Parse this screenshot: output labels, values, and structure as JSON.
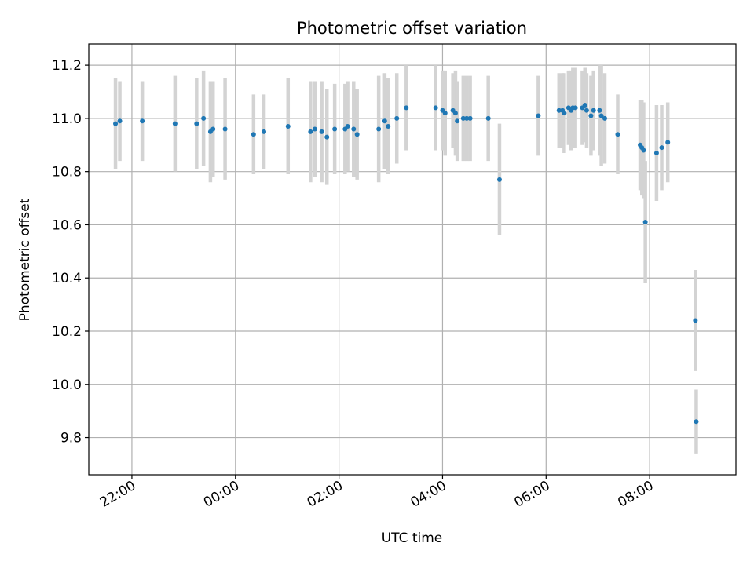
{
  "chart_data": {
    "type": "scatter",
    "title": "Photometric offset variation",
    "xlabel": "UTC time",
    "ylabel": "Photometric offset",
    "grid": true,
    "legend": "none",
    "xlim": [
      "21:10",
      "09:40"
    ],
    "ylim": [
      9.66,
      11.28
    ],
    "x_tick_labels": [
      "22:00",
      "00:00",
      "02:00",
      "04:00",
      "06:00",
      "08:00"
    ],
    "y_tick_labels": [
      "9.8",
      "10.0",
      "10.2",
      "10.4",
      "10.6",
      "10.8",
      "11.0",
      "11.2"
    ],
    "colors": {
      "points": "#1f77b4",
      "error_bars": "#d3d3d3",
      "grid": "#b0b0b0"
    },
    "series": [
      {
        "x": [
          "21:41",
          "21:46",
          "22:12",
          "22:50",
          "23:15",
          "23:23",
          "23:31",
          "23:34",
          "23:48",
          "00:21",
          "00:33",
          "01:01",
          "01:27",
          "01:32",
          "01:40",
          "01:46",
          "01:55",
          "02:07",
          "02:10",
          "02:17",
          "02:21",
          "02:46",
          "02:53",
          "02:57",
          "03:07",
          "03:18",
          "03:52",
          "04:00",
          "04:03",
          "04:12",
          "04:15",
          "04:17",
          "04:24",
          "04:28",
          "04:32",
          "04:53",
          "05:06",
          "05:51",
          "06:15",
          "06:19",
          "06:21",
          "06:26",
          "06:29",
          "06:31",
          "06:34",
          "06:42",
          "06:45",
          "06:47",
          "06:52",
          "06:55",
          "07:02",
          "07:04",
          "07:08",
          "07:23",
          "07:49",
          "07:51",
          "07:53",
          "07:55",
          "08:08",
          "08:14",
          "08:21",
          "08:53",
          "08:54"
        ],
        "y": [
          10.98,
          10.99,
          10.99,
          10.98,
          10.98,
          11.0,
          10.95,
          10.96,
          10.96,
          10.94,
          10.95,
          10.97,
          10.95,
          10.96,
          10.95,
          10.93,
          10.96,
          10.96,
          10.97,
          10.96,
          10.94,
          10.96,
          10.99,
          10.97,
          11.0,
          11.04,
          11.04,
          11.03,
          11.02,
          11.03,
          11.02,
          10.99,
          11.0,
          11.0,
          11.0,
          11.0,
          10.77,
          11.01,
          11.03,
          11.03,
          11.02,
          11.04,
          11.03,
          11.04,
          11.04,
          11.04,
          11.05,
          11.03,
          11.01,
          11.03,
          11.03,
          11.01,
          11.0,
          10.94,
          10.9,
          10.89,
          10.88,
          10.61,
          10.87,
          10.89,
          10.91,
          10.24,
          9.86
        ],
        "y_err": [
          0.17,
          0.15,
          0.15,
          0.18,
          0.17,
          0.18,
          0.19,
          0.18,
          0.19,
          0.15,
          0.14,
          0.18,
          0.19,
          0.18,
          0.19,
          0.18,
          0.17,
          0.17,
          0.17,
          0.18,
          0.17,
          0.2,
          0.18,
          0.18,
          0.17,
          0.16,
          0.16,
          0.15,
          0.16,
          0.14,
          0.16,
          0.15,
          0.16,
          0.16,
          0.16,
          0.16,
          0.21,
          0.15,
          0.14,
          0.14,
          0.15,
          0.14,
          0.15,
          0.15,
          0.15,
          0.14,
          0.14,
          0.14,
          0.15,
          0.15,
          0.17,
          0.19,
          0.17,
          0.15,
          0.17,
          0.18,
          0.18,
          0.23,
          0.18,
          0.16,
          0.15,
          0.19,
          0.12
        ]
      }
    ]
  }
}
